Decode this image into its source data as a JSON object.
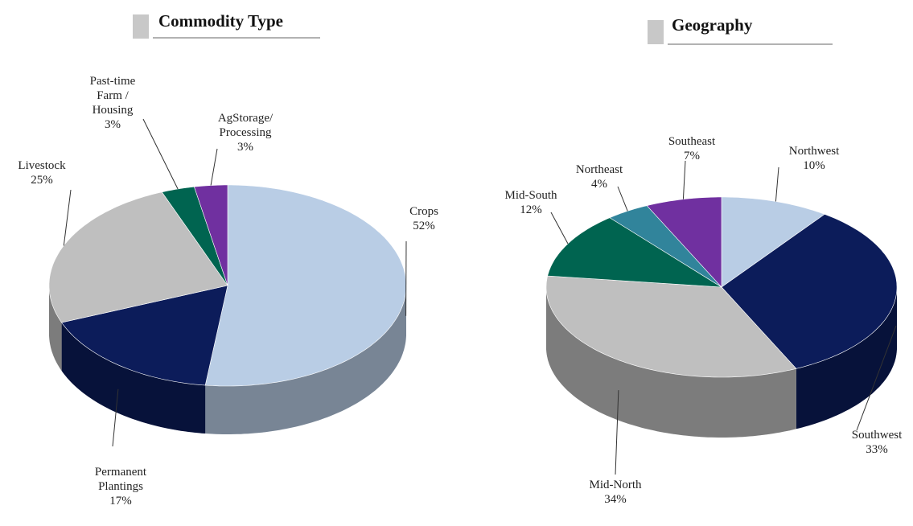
{
  "chart_data": [
    {
      "type": "pie3d",
      "title": "Commodity Type",
      "categories": [
        "Crops",
        "Permanent Plantings",
        "Livestock",
        "Past-time Farm / Housing",
        "AgStorage/ Processing"
      ],
      "values": [
        52,
        17,
        25,
        3,
        3
      ],
      "value_labels": [
        "52%",
        "17%",
        "25%",
        "3%",
        "3%"
      ],
      "colors": [
        "#b9cde5",
        "#0c1c5a",
        "#bfbfbf",
        "#006450",
        "#7030a0"
      ]
    },
    {
      "type": "pie3d",
      "title": "Geography",
      "categories": [
        "Northwest",
        "Southwest",
        "Mid-North",
        "Mid-South",
        "Northeast",
        "Southeast"
      ],
      "values": [
        10,
        33,
        34,
        12,
        4,
        7
      ],
      "value_labels": [
        "10%",
        "33%",
        "34%",
        "12%",
        "4%",
        "7%"
      ],
      "colors": [
        "#b9cde5",
        "#0c1c5a",
        "#bfbfbf",
        "#006450",
        "#31849b",
        "#7030a0"
      ]
    }
  ]
}
